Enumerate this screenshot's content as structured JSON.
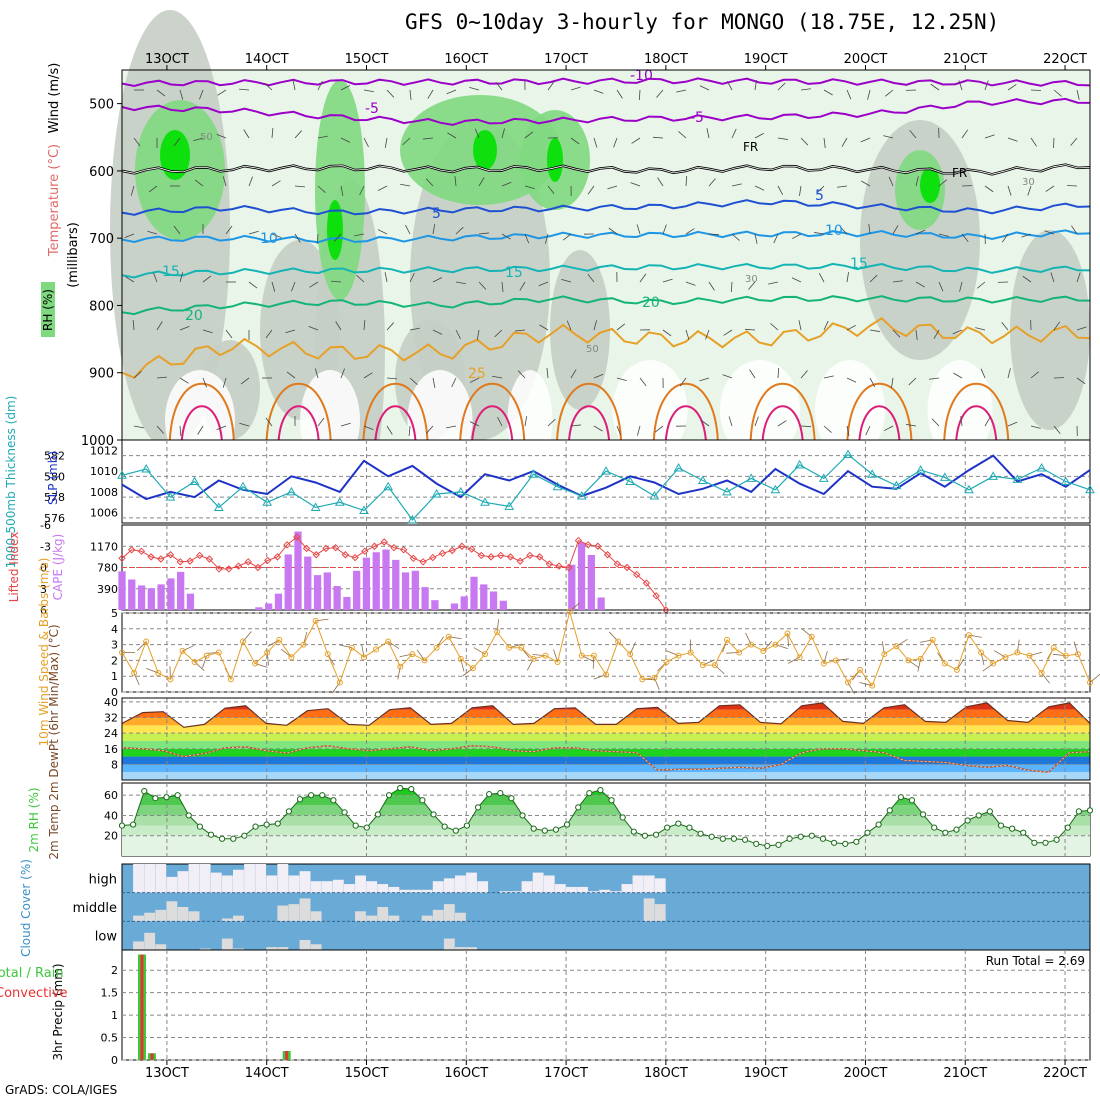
{
  "page": {
    "title": "GFS 0~10day 3-hourly for MONGO (18.75E, 12.25N)",
    "footer": "GrADS: COLA/IGES"
  },
  "colors": {
    "rh_light": "#e8f5e8",
    "rh_mid": "#c5cec5",
    "rh_wet": "#7fd97f",
    "rh_sat": "#00e000",
    "temp_neg": "#9b00c8",
    "temp_5": "#1e50d2",
    "temp_10": "#1e96e6",
    "temp_15": "#14b4b4",
    "temp_20": "#14b478",
    "temp_25": "#e6a028",
    "temp_30": "#e07a1e",
    "temp_35": "#dc1e78",
    "thickness": "#1e32c8",
    "slp": "#1eaab4",
    "cape": "#c878f0",
    "lifted_index": "#e64646",
    "wind_speed": "#e6a028",
    "dewpoint": "#b45028",
    "rh2m": "#3cc83c",
    "cloud_clear": "#6aaad6",
    "cloud_cover": "#dcdcdc",
    "cloud_high": "#f2eef6",
    "precip_total": "#3cc83c",
    "precip_conv": "#e63232"
  },
  "chart_data": [
    {
      "type": "line",
      "panel": "upper-air cross section",
      "title": "GFS 0~10day 3-hourly for MONGO (18.75E, 12.25N)",
      "x_tick_labels": [
        "13OCT",
        "14OCT",
        "15OCT",
        "16OCT",
        "17OCT",
        "18OCT",
        "19OCT",
        "20OCT",
        "21OCT",
        "22OCT"
      ],
      "y_ticks": [
        500,
        600,
        700,
        800,
        900,
        1000
      ],
      "ylim": [
        1000,
        450
      ],
      "ylabel_rh": "RH (%)",
      "ylabel_temp": "Temperature (°C)",
      "ylabel_wind": "Wind (m/s)",
      "ylabel_units": "(millibars)",
      "freezing_label": "FR",
      "series": [
        {
          "name": "-10",
          "pressure": [
            470,
            469,
            468,
            468,
            467,
            466,
            467,
            468,
            469,
            470
          ]
        },
        {
          "name": "-5",
          "pressure": [
            505,
            510,
            520,
            528,
            525,
            522,
            520,
            515,
            498,
            496
          ]
        },
        {
          "name": "0",
          "pressure": [
            600,
            597,
            595,
            598,
            596,
            600,
            595,
            598,
            602,
            592
          ]
        },
        {
          "name": "5",
          "pressure": [
            662,
            655,
            662,
            658,
            656,
            653,
            646,
            653,
            660,
            650
          ]
        },
        {
          "name": "10",
          "pressure": [
            702,
            700,
            703,
            700,
            696,
            695,
            694,
            693,
            698,
            690
          ]
        },
        {
          "name": "15",
          "pressure": [
            755,
            750,
            748,
            747,
            745,
            743,
            742,
            742,
            748,
            745
          ]
        },
        {
          "name": "20",
          "pressure": [
            810,
            800,
            795,
            800,
            790,
            795,
            790,
            790,
            792,
            790
          ]
        },
        {
          "name": "25",
          "pressure": [
            900,
            860,
            870,
            870,
            840,
            850,
            850,
            830,
            845,
            840
          ]
        }
      ],
      "rh_contour_labels": [
        "30",
        "50"
      ]
    },
    {
      "type": "line",
      "panel": "thickness and slp",
      "ylabel_left": "1000-500mb Thickness (dm)",
      "ylabel_right": "SLP (mb)",
      "thickness_ticks": [
        576,
        578,
        580,
        582
      ],
      "slp_ticks": [
        1006,
        1008,
        1010,
        1012
      ],
      "thickness_range": [
        575.5,
        583.5
      ],
      "slp_range": [
        1005,
        1013
      ],
      "series": [
        {
          "name": "1000-500mb Thickness",
          "values": [
            579.2,
            577.8,
            578.5,
            578.0,
            579.6,
            578.7,
            578.3,
            580.0,
            579.4,
            578.5,
            581.5,
            580.0,
            581.0,
            579.3,
            578.0,
            580.2,
            579.6,
            580.5,
            579.2,
            578.1,
            578.9,
            580.0,
            579.4,
            578.3,
            578.8,
            579.6,
            578.5,
            580.7,
            579.3,
            578.3,
            580.5,
            579.0,
            578.8,
            580.3,
            579.0,
            580.6,
            582.0,
            579.5,
            580.2,
            579.0,
            580.6
          ]
        },
        {
          "name": "SLP",
          "values": [
            1009.6,
            1010.2,
            1007.5,
            1009.0,
            1006.5,
            1008.5,
            1007.0,
            1008.0,
            1006.5,
            1007.0,
            1006.2,
            1008.5,
            1005.3,
            1007.8,
            1008.0,
            1007.0,
            1006.6,
            1009.7,
            1008.5,
            1007.6,
            1010.0,
            1009.0,
            1007.6,
            1010.3,
            1009.1,
            1008.0,
            1009.3,
            1008.2,
            1010.6,
            1009.3,
            1011.6,
            1009.7,
            1008.6,
            1010.1,
            1009.4,
            1008.2,
            1009.5,
            1009.2,
            1010.3,
            1009.0,
            1008.2
          ]
        }
      ]
    },
    {
      "type": "bar",
      "panel": "cape and lifted index",
      "ylabel_left": "Lifted Index",
      "ylabel_right": "CAPE (J/kg)",
      "li_ticks": [
        6,
        3,
        0,
        -3,
        -6
      ],
      "cape_ticks": [
        390,
        780,
        1170
      ],
      "li_range": [
        6,
        -6
      ],
      "cape_range": [
        0,
        1560
      ],
      "series": [
        {
          "name": "CAPE",
          "values": [
            710,
            560,
            450,
            400,
            470,
            580,
            700,
            300,
            0,
            0,
            0,
            0,
            0,
            0,
            50,
            120,
            300,
            1020,
            1440,
            980,
            640,
            690,
            440,
            240,
            720,
            960,
            1060,
            1110,
            920,
            690,
            720,
            420,
            180,
            0,
            120,
            250,
            610,
            470,
            340,
            170,
            0,
            0,
            0,
            0,
            0,
            0,
            830,
            1240,
            1010,
            230,
            0,
            0,
            0,
            0,
            0,
            0,
            0,
            0,
            0,
            0,
            0,
            0,
            0,
            0,
            0,
            0,
            0,
            0,
            0,
            0,
            0,
            0,
            0,
            0,
            0,
            0,
            0,
            0,
            0,
            0,
            0,
            0,
            0,
            0,
            0,
            0,
            0,
            0,
            0,
            0,
            0,
            0,
            0,
            0,
            0,
            0,
            0,
            0,
            0,
            0
          ]
        },
        {
          "name": "Lifted Index",
          "values": [
            -1.3,
            -2.5,
            -2.3,
            -1.5,
            -1.2,
            -1.8,
            -0.8,
            -0.9,
            -1.7,
            -1.2,
            0.2,
            0.2,
            -0.2,
            -0.8,
            0.0,
            -1.0,
            -1.5,
            -3.2,
            -4.3,
            -2.7,
            -1.8,
            -2.7,
            -2.8,
            -1.8,
            -1.4,
            -2.3,
            -3.0,
            -3.6,
            -2.8,
            -2.5,
            -1.3,
            -0.8,
            -1.4,
            -2.0,
            -2.4,
            -3.0,
            -2.6,
            -1.7,
            -1.5,
            -1.7,
            -1.5,
            -0.9,
            -1.7,
            -1.5,
            -0.5,
            -0.2,
            0.0,
            -3.8,
            -3.2,
            -3.0,
            -1.8,
            -0.5,
            0.0,
            1.0,
            2.2,
            4.0,
            6.0
          ]
        }
      ]
    },
    {
      "type": "line",
      "panel": "10m wind",
      "ylabel": "10m Wind Speed & Barbs (m/s)",
      "y_ticks": [
        0,
        1,
        2,
        3,
        4,
        5
      ],
      "ylim": [
        0,
        5
      ],
      "series": [
        {
          "name": "10m wind speed",
          "values": [
            2.5,
            1.2,
            3.2,
            1.2,
            0.8,
            2.6,
            1.9,
            2.3,
            2.5,
            0.8,
            3.2,
            1.8,
            2.5,
            3.3,
            2.2,
            3.0,
            4.5,
            2.4,
            0.6,
            2.8,
            2.2,
            2.7,
            3.2,
            1.6,
            2.4,
            2.0,
            2.8,
            3.5,
            2.1,
            1.5,
            2.4,
            3.8,
            2.8,
            2.8,
            2.1,
            2.3,
            1.9,
            5.1,
            2.3,
            2.3,
            1.1,
            3.2,
            2.4,
            0.8,
            0.9,
            1.9,
            2.3,
            2.5,
            1.7,
            1.7,
            3.3,
            2.5,
            3.0,
            2.6,
            3.0,
            3.7,
            2.2,
            3.5,
            1.8,
            2.0,
            0.6,
            1.4,
            0.4,
            2.4,
            2.9,
            2.0,
            2.1,
            3.3,
            1.8,
            1.4,
            3.6,
            2.5,
            1.8,
            2.2,
            2.5,
            2.3,
            1.2,
            2.8,
            2.3,
            2.4,
            0.6
          ]
        }
      ]
    },
    {
      "type": "area",
      "panel": "2m temperature",
      "ylabel": "2m Temp 2m DewPt (6hr Min/Max) (°C)",
      "y_ticks": [
        8,
        16,
        24,
        32,
        40
      ],
      "ylim": [
        0,
        42
      ],
      "series": [
        {
          "name": "2m Temp",
          "values": [
            29.0,
            34.5,
            35.0,
            27.0,
            28.5,
            36.8,
            38.0,
            29.0,
            28.0,
            35.5,
            36.5,
            28.5,
            28.0,
            36.0,
            37.0,
            28.5,
            29.0,
            37.0,
            38.0,
            28.5,
            29.0,
            36.5,
            37.0,
            28.5,
            28.5,
            36.5,
            37.2,
            29.0,
            29.5,
            38.0,
            38.5,
            29.5,
            28.8,
            38.0,
            39.5,
            30.0,
            29.0,
            37.0,
            38.5,
            30.0,
            29.5,
            37.5,
            39.5,
            30.5,
            29.5,
            37.5,
            39.5,
            29.0
          ]
        },
        {
          "name": "2m DewPt",
          "values": [
            16.5,
            16.0,
            15.0,
            12.0,
            13.5,
            16.5,
            17.0,
            15.0,
            13.8,
            16.5,
            17.5,
            16.0,
            15.0,
            16.0,
            17.0,
            15.0,
            16.0,
            17.5,
            17.0,
            15.0,
            14.5,
            16.5,
            16.5,
            15.0,
            14.5,
            14.0,
            5.0,
            5.5,
            5.5,
            6.0,
            6.5,
            6.0,
            8.0,
            14.0,
            16.0,
            16.0,
            15.0,
            14.0,
            10.0,
            9.5,
            9.0,
            7.5,
            6.5,
            7.5,
            5.0,
            4.0,
            14.0,
            14.5
          ]
        }
      ]
    },
    {
      "type": "area",
      "panel": "2m relative humidity",
      "ylabel": "2m RH (%)",
      "y_ticks": [
        20,
        40,
        60
      ],
      "ylim": [
        0,
        72
      ],
      "series": [
        {
          "name": "2m RH",
          "values": [
            30,
            31,
            64,
            57,
            58,
            60,
            40,
            29,
            21,
            17,
            17,
            20,
            29,
            31,
            32,
            44,
            56,
            60,
            60,
            55,
            43,
            30,
            28,
            41,
            60,
            67,
            66,
            55,
            41,
            29,
            25,
            30,
            48,
            61,
            62,
            57,
            40,
            27,
            25,
            26,
            31,
            48,
            62,
            65,
            55,
            38,
            24,
            20,
            21,
            28,
            32,
            28,
            22,
            19,
            17,
            17,
            16,
            12,
            10,
            11,
            17,
            19,
            20,
            17,
            13,
            12,
            14,
            23,
            31,
            45,
            58,
            55,
            41,
            28,
            23,
            26,
            35,
            40,
            44,
            30,
            27,
            23,
            13,
            13,
            16,
            28,
            44,
            45
          ]
        }
      ]
    },
    {
      "type": "bar",
      "panel": "cloud cover",
      "ylabel": "Cloud Cover (%)",
      "levels": [
        "high",
        "middle",
        "low"
      ],
      "series": [
        {
          "name": "high",
          "values": [
            0,
            100,
            100,
            100,
            55,
            75,
            100,
            100,
            70,
            60,
            80,
            100,
            100,
            60,
            100,
            60,
            75,
            40,
            40,
            45,
            30,
            60,
            40,
            30,
            20,
            10,
            10,
            10,
            40,
            50,
            60,
            70,
            40,
            0,
            5,
            5,
            40,
            70,
            60,
            30,
            20,
            20,
            5,
            10,
            5,
            30,
            60,
            60,
            50,
            0
          ]
        },
        {
          "name": "middle",
          "values": [
            0,
            20,
            30,
            40,
            70,
            50,
            35,
            0,
            0,
            10,
            20,
            0,
            0,
            0,
            55,
            60,
            80,
            35,
            0,
            0,
            0,
            35,
            20,
            50,
            20,
            0,
            0,
            20,
            40,
            60,
            30,
            0,
            0,
            0,
            0,
            0,
            0,
            0,
            0,
            0,
            0,
            0,
            0,
            0,
            0,
            0,
            0,
            80,
            60,
            0
          ]
        },
        {
          "name": "low",
          "values": [
            0,
            30,
            60,
            20,
            0,
            0,
            0,
            5,
            0,
            40,
            5,
            0,
            0,
            10,
            10,
            0,
            35,
            20,
            0,
            0,
            0,
            0,
            0,
            0,
            0,
            0,
            0,
            0,
            0,
            40,
            10,
            10,
            0,
            0,
            0,
            0,
            0,
            0,
            0,
            0,
            0,
            0,
            0,
            0,
            0,
            0,
            0,
            0,
            0,
            0
          ]
        }
      ]
    },
    {
      "type": "bar",
      "panel": "3hr precipitation",
      "ylabel": "3hr Precip (mm)",
      "legend": [
        "Total / Rain",
        "Convective"
      ],
      "annotation": "Run Total = 2.69",
      "y_ticks": [
        0,
        0.5,
        1,
        1.5,
        2
      ],
      "y_tick_labels": [
        "0",
        "0.5",
        "1",
        "1.5",
        "2"
      ],
      "ylim": [
        0,
        2.45
      ],
      "x_tick_labels": [
        "13OCT",
        "14OCT",
        "15OCT",
        "16OCT",
        "17OCT",
        "18OCT",
        "19OCT",
        "20OCT",
        "21OCT",
        "22OCT"
      ],
      "series": [
        {
          "name": "Total / Rain",
          "days": [
            12.75,
            12.85,
            14.2
          ],
          "values": [
            2.35,
            0.15,
            0.2
          ]
        },
        {
          "name": "Convective",
          "days": [
            12.75,
            12.85,
            14.2
          ],
          "values": [
            2.35,
            0.15,
            0.2
          ]
        }
      ]
    }
  ]
}
